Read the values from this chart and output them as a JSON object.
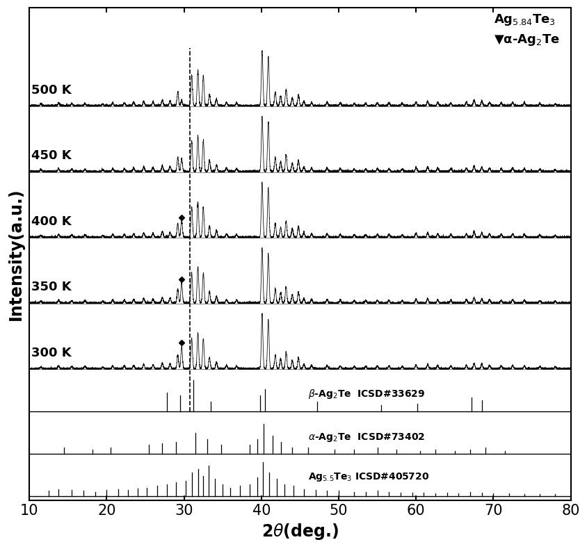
{
  "xlabel": "2$\\theta$(deg.)",
  "ylabel": "Intensity(a.u.)",
  "xlim": [
    10,
    80
  ],
  "temperatures": [
    "300 K",
    "350 K",
    "400 K",
    "450 K",
    "500 K"
  ],
  "ref_labels": [
    "$\\beta$-Ag$_2$Te  ICSD#33629",
    "$\\alpha$-Ag$_2$Te  ICSD#73402",
    "Ag$_{5.5}$Te$_3$ ICSD#405720"
  ],
  "dashed_line_x": 30.8,
  "background_color": "#ffffff",
  "tick_fontsize": 15,
  "label_fontsize": 17
}
